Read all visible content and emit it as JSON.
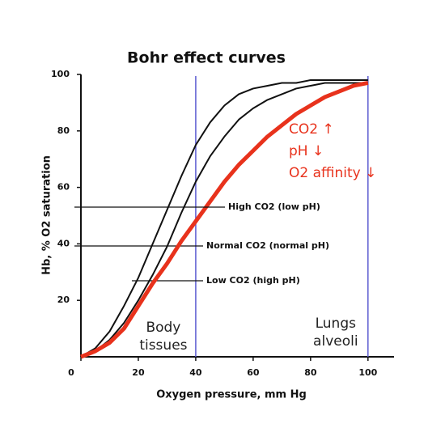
{
  "chart_data": {
    "type": "line",
    "title": "Bohr effect curves",
    "x_label": "Oxygen pressure, mm Hg",
    "y_label": "Hb, % O2 saturation",
    "x": [
      0,
      5,
      10,
      15,
      20,
      25,
      30,
      35,
      40,
      45,
      50,
      55,
      60,
      65,
      70,
      75,
      80,
      85,
      90,
      95,
      100
    ],
    "series": [
      {
        "name": "Low CO2 (high pH)",
        "color": "#111111",
        "values": [
          0,
          3,
          9,
          18,
          28,
          40,
          52,
          64,
          75,
          83,
          89,
          93,
          95,
          96,
          97,
          97,
          98,
          98,
          98,
          98,
          98
        ]
      },
      {
        "name": "Normal CO2 (normal pH)",
        "color": "#111111",
        "values": [
          0,
          2,
          6,
          12,
          20,
          29,
          39,
          51,
          62,
          71,
          78,
          84,
          88,
          91,
          93,
          95,
          96,
          97,
          97,
          97,
          97
        ]
      },
      {
        "name": "High CO2 (low pH)",
        "color": "#e8321c",
        "values": [
          0,
          2,
          5,
          10,
          18,
          26,
          33,
          41,
          48,
          55,
          62,
          68,
          73,
          78,
          82,
          86,
          89,
          92,
          94,
          96,
          97
        ]
      }
    ],
    "xlim": [
      0,
      104
    ],
    "ylim": [
      0,
      100
    ],
    "xticks": [
      0,
      20,
      40,
      60,
      80,
      100
    ],
    "yticks": [
      20,
      40,
      60,
      80,
      100
    ],
    "reference_lines": [
      {
        "x": 40,
        "label": [
          "Body",
          "tissues"
        ]
      },
      {
        "x": 100,
        "label": [
          "Lungs",
          "alveoli"
        ]
      }
    ],
    "reference_color": "#5b5bd0",
    "annotation": [
      "CO2 ↑",
      "pH ↓",
      "O2 affinity ↓"
    ],
    "annotation_color": "#e8321c"
  }
}
